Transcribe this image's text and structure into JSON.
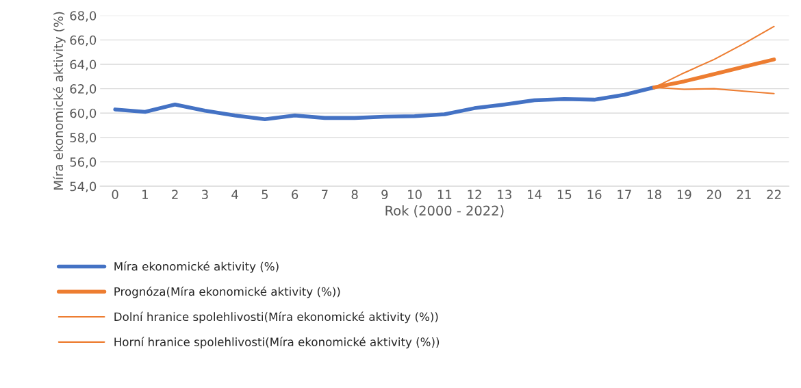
{
  "chart_data": {
    "type": "line",
    "xlabel": "Rok (2000 - 2022)",
    "ylabel": "Míra ekonomické aktivity (%)",
    "categories": [
      "0",
      "1",
      "2",
      "3",
      "4",
      "5",
      "6",
      "7",
      "8",
      "9",
      "10",
      "11",
      "12",
      "13",
      "14",
      "15",
      "16",
      "17",
      "18",
      "19",
      "20",
      "21",
      "22"
    ],
    "ylim": [
      54,
      68
    ],
    "yticks": [
      {
        "value": 54,
        "label": "54,0"
      },
      {
        "value": 56,
        "label": "56,0"
      },
      {
        "value": 58,
        "label": "58,0"
      },
      {
        "value": 60,
        "label": "60,0"
      },
      {
        "value": 62,
        "label": "62,0"
      },
      {
        "value": 64,
        "label": "64,0"
      },
      {
        "value": 66,
        "label": "66,0"
      },
      {
        "value": 68,
        "label": "68,0"
      }
    ],
    "grid": "y",
    "legend": "bottom",
    "series": [
      {
        "name": "Míra ekonomické aktivity (%)",
        "color": "#4472c4",
        "values": [
          60.3,
          60.1,
          60.7,
          60.2,
          59.8,
          59.5,
          59.8,
          59.6,
          59.6,
          59.7,
          59.75,
          59.9,
          60.4,
          60.7,
          61.05,
          61.15,
          61.1,
          61.5,
          62.1,
          null,
          null,
          null,
          null
        ]
      },
      {
        "name": "Prognóza(Míra ekonomické aktivity (%))",
        "color": "#ed7d31",
        "values": [
          null,
          null,
          null,
          null,
          null,
          null,
          null,
          null,
          null,
          null,
          null,
          null,
          null,
          null,
          null,
          null,
          null,
          null,
          62.1,
          62.6,
          63.2,
          63.8,
          64.4
        ]
      },
      {
        "name": "Dolní hranice spolehlivosti(Míra ekonomické aktivity (%))",
        "color": "#ed7d31",
        "values": [
          null,
          null,
          null,
          null,
          null,
          null,
          null,
          null,
          null,
          null,
          null,
          null,
          null,
          null,
          null,
          null,
          null,
          null,
          62.1,
          61.95,
          62.0,
          61.8,
          61.6
        ]
      },
      {
        "name": "Horní hranice spolehlivosti(Míra ekonomické aktivity (%))",
        "color": "#ed7d31",
        "values": [
          null,
          null,
          null,
          null,
          null,
          null,
          null,
          null,
          null,
          null,
          null,
          null,
          null,
          null,
          null,
          null,
          null,
          null,
          62.1,
          63.3,
          64.4,
          65.7,
          67.1
        ]
      }
    ]
  }
}
